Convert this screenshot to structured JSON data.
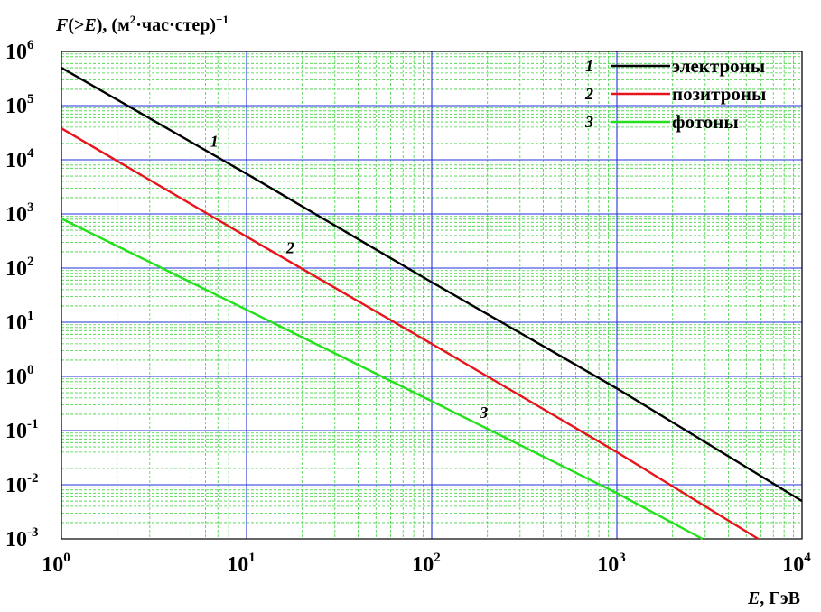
{
  "chart_data": {
    "type": "line",
    "x_scale": "log",
    "y_scale": "log",
    "xlim": [
      1,
      10000
    ],
    "ylim": [
      0.001,
      1000000
    ],
    "grid": true,
    "legend_position": "top-right",
    "ylabel": {
      "prefix": "F",
      "paren_open": "(>",
      "var": "E",
      "paren_close": "), (м",
      "sup": "2",
      "rest": "·час·стер)",
      "sup2": "−1"
    },
    "xlabel": {
      "var": "E",
      "rest": ", ГэВ"
    },
    "x_ticks": [
      {
        "base": "10",
        "exp": "0"
      },
      {
        "base": "10",
        "exp": "1"
      },
      {
        "base": "10",
        "exp": "2"
      },
      {
        "base": "10",
        "exp": "3"
      },
      {
        "base": "10",
        "exp": "4"
      }
    ],
    "y_ticks": [
      {
        "base": "10",
        "exp": "-3"
      },
      {
        "base": "10",
        "exp": "-2"
      },
      {
        "base": "10",
        "exp": "-1"
      },
      {
        "base": "10",
        "exp": "0"
      },
      {
        "base": "10",
        "exp": "1"
      },
      {
        "base": "10",
        "exp": "2"
      },
      {
        "base": "10",
        "exp": "3"
      },
      {
        "base": "10",
        "exp": "4"
      },
      {
        "base": "10",
        "exp": "5"
      },
      {
        "base": "10",
        "exp": "6"
      }
    ],
    "series": [
      {
        "id": "1",
        "name": "электроны",
        "color": "#000000",
        "x": [
          1,
          10,
          100,
          1000,
          10000
        ],
        "y": [
          500000,
          5500,
          55,
          0.6,
          0.005
        ],
        "curve_label": {
          "text": "1",
          "at_x": 7.0
        }
      },
      {
        "id": "2",
        "name": "позитроны",
        "color": "#e8141c",
        "x": [
          1,
          10,
          100,
          1000,
          5800
        ],
        "y": [
          38000,
          380,
          4,
          0.04,
          0.001
        ],
        "curve_label": {
          "text": "2",
          "at_x": 18.0
        }
      },
      {
        "id": "3",
        "name": "фотоны",
        "color": "#22e01a",
        "x": [
          1,
          10,
          100,
          1000,
          2900
        ],
        "y": [
          820,
          17,
          0.35,
          0.007,
          0.001
        ],
        "curve_label": {
          "text": "3",
          "at_x": 200.0
        }
      }
    ]
  }
}
